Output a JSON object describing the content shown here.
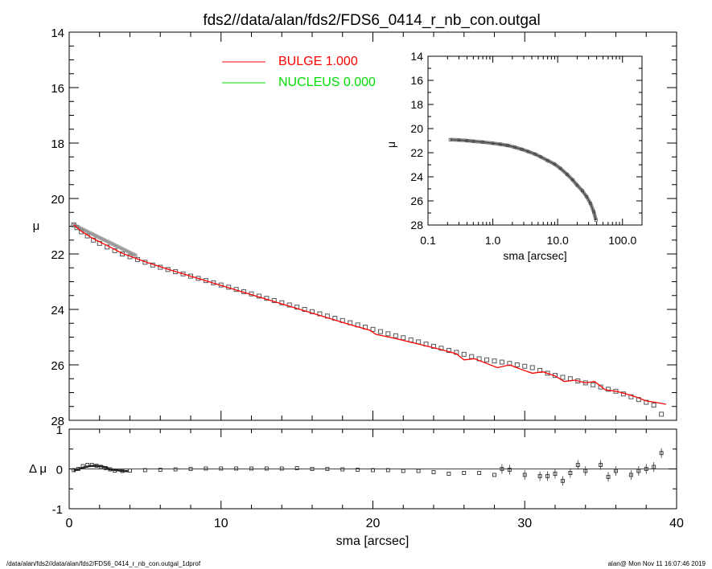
{
  "chart_data": [
    {
      "type": "line",
      "name": "main-profile",
      "title": "fds2//data/alan/fds2/FDS6_0414_r_nb_con.outgal",
      "xlabel": "sma [arcsec]",
      "ylabel": "μ",
      "xlim": [
        0,
        40
      ],
      "ylim": [
        28,
        14
      ],
      "yticks": [
        14,
        16,
        18,
        20,
        22,
        24,
        26,
        28
      ],
      "yticklabels": [
        "14",
        "16",
        "18",
        "20",
        "22",
        "24",
        "26",
        "28"
      ],
      "legend": [
        {
          "label": "BULGE  1.000",
          "color": "#ff0000"
        },
        {
          "label": "NUCLEUS  0.000",
          "color": "#00dd00"
        }
      ],
      "data_series": {
        "name": "data",
        "marker": "square",
        "x": [
          0.3,
          0.5,
          0.8,
          1.2,
          1.6,
          2.0,
          2.5,
          3.0,
          3.5,
          4.0,
          4.5,
          5.0,
          5.5,
          6.0,
          6.5,
          7.0,
          7.5,
          8.0,
          8.5,
          9.0,
          9.5,
          10.0,
          10.5,
          11.0,
          11.5,
          12.0,
          12.5,
          13.0,
          13.5,
          14.0,
          14.5,
          15.0,
          15.5,
          16.0,
          16.5,
          17.0,
          17.5,
          18.0,
          18.5,
          19.0,
          19.5,
          20.0,
          20.5,
          21.0,
          21.5,
          22.0,
          22.5,
          23.0,
          23.5,
          24.0,
          24.5,
          25.0,
          25.5,
          26.0,
          26.5,
          27.0,
          27.5,
          28.0,
          28.5,
          29.0,
          29.5,
          30.0,
          30.5,
          31.0,
          31.5,
          32.0,
          32.5,
          33.0,
          33.5,
          34.0,
          34.5,
          35.0,
          35.5,
          36.0,
          36.5,
          37.0,
          37.5,
          38.0,
          38.5,
          39.0
        ],
        "y": [
          20.95,
          21.05,
          21.2,
          21.35,
          21.5,
          21.62,
          21.75,
          21.88,
          22.0,
          22.1,
          22.2,
          22.3,
          22.4,
          22.48,
          22.56,
          22.64,
          22.72,
          22.8,
          22.88,
          22.96,
          23.04,
          23.12,
          23.2,
          23.28,
          23.36,
          23.44,
          23.52,
          23.6,
          23.68,
          23.76,
          23.84,
          23.92,
          24.0,
          24.08,
          24.16,
          24.24,
          24.32,
          24.4,
          24.48,
          24.56,
          24.64,
          24.72,
          24.8,
          24.88,
          24.95,
          25.02,
          25.1,
          25.17,
          25.25,
          25.33,
          25.4,
          25.48,
          25.55,
          25.62,
          25.7,
          25.78,
          25.82,
          25.86,
          25.9,
          25.95,
          26.0,
          26.05,
          26.1,
          26.2,
          26.3,
          26.38,
          26.45,
          26.5,
          26.58,
          26.65,
          26.72,
          26.8,
          26.88,
          26.95,
          27.05,
          27.15,
          27.25,
          27.35,
          27.45,
          27.78
        ]
      },
      "model_series": {
        "name": "BULGE",
        "color": "#ff0000",
        "x": [
          0.3,
          0.8,
          1.5,
          2.5,
          3.5,
          5.0,
          6.5,
          8.0,
          9.5,
          11.0,
          12.5,
          14.0,
          15.5,
          17.0,
          18.5,
          19.8,
          20.2,
          21.5,
          23.0,
          24.5,
          25.5,
          26.0,
          26.7,
          27.5,
          28.2,
          29.0,
          29.7,
          30.5,
          31.2,
          32.0,
          32.6,
          33.3,
          34.0,
          34.6,
          35.3,
          36.0,
          36.7,
          37.3,
          38.0,
          38.6,
          39.3
        ],
        "y": [
          20.95,
          21.18,
          21.42,
          21.7,
          21.98,
          22.28,
          22.55,
          22.8,
          23.05,
          23.3,
          23.55,
          23.8,
          24.05,
          24.3,
          24.55,
          24.75,
          24.9,
          25.05,
          25.25,
          25.45,
          25.6,
          25.82,
          25.78,
          25.95,
          26.1,
          26.0,
          26.15,
          26.3,
          26.25,
          26.4,
          26.6,
          26.55,
          26.65,
          26.6,
          26.9,
          26.95,
          27.05,
          27.15,
          27.3,
          27.35,
          27.42
        ]
      }
    },
    {
      "type": "line",
      "name": "residuals",
      "xlabel": "sma [arcsec]",
      "ylabel": "Δ μ",
      "xlim": [
        0,
        40
      ],
      "ylim": [
        -1,
        1
      ],
      "xticks": [
        0,
        10,
        20,
        30,
        40
      ],
      "xticklabels": [
        "0",
        "10",
        "20",
        "30",
        "40"
      ],
      "yticks": [
        -1,
        0,
        1
      ],
      "yticklabels": [
        "-1",
        "0",
        "1"
      ],
      "x": [
        0.3,
        0.6,
        0.9,
        1.2,
        1.5,
        1.8,
        2.1,
        2.4,
        2.7,
        3.0,
        3.5,
        4.0,
        5.0,
        6.0,
        7.0,
        8.0,
        9.0,
        10.0,
        11.0,
        12.0,
        13.0,
        14.0,
        15.0,
        16.0,
        17.0,
        18.0,
        19.0,
        20.0,
        21.0,
        22.0,
        23.0,
        24.0,
        25.0,
        26.0,
        27.0,
        28.0,
        28.5,
        29.0,
        30.0,
        31.0,
        31.5,
        32.0,
        32.5,
        33.0,
        33.5,
        34.0,
        35.0,
        35.5,
        36.0,
        37.0,
        37.5,
        38.0,
        38.5,
        39.0
      ],
      "y": [
        -0.03,
        0.0,
        0.07,
        0.1,
        0.1,
        0.08,
        0.05,
        0.02,
        -0.01,
        -0.04,
        -0.05,
        -0.04,
        -0.03,
        -0.02,
        -0.01,
        0.0,
        0.01,
        0.01,
        0.01,
        0.01,
        0.01,
        0.01,
        0.02,
        0.0,
        0.0,
        -0.01,
        -0.02,
        -0.03,
        -0.03,
        -0.05,
        -0.05,
        -0.08,
        -0.12,
        -0.1,
        -0.1,
        -0.15,
        0.0,
        -0.02,
        -0.15,
        -0.18,
        -0.18,
        -0.12,
        -0.3,
        -0.1,
        0.1,
        -0.05,
        0.1,
        -0.2,
        -0.05,
        -0.15,
        -0.05,
        0.0,
        0.05,
        0.4
      ]
    },
    {
      "type": "line",
      "name": "inset-log-profile",
      "xlabel": "sma [arcsec]",
      "ylabel": "μ",
      "xscale": "log",
      "xlim": [
        0.1,
        200
      ],
      "ylim": [
        28,
        14
      ],
      "xticks": [
        0.1,
        1.0,
        10.0,
        100.0
      ],
      "xticklabels": [
        "0.1",
        "1.0",
        "10.0",
        "100.0"
      ],
      "yticks": [
        14,
        16,
        18,
        20,
        22,
        24,
        26,
        28
      ],
      "yticklabels": [
        "14",
        "16",
        "18",
        "20",
        "22",
        "24",
        "26",
        "28"
      ],
      "x": [
        0.22,
        0.3,
        0.4,
        0.5,
        0.7,
        1.0,
        1.3,
        1.7,
        2.2,
        2.8,
        3.5,
        4.5,
        5.5,
        7.0,
        9.0,
        11.0,
        14.0,
        17.0,
        20.0,
        24.0,
        28.0,
        32.0,
        36.0,
        39.0
      ],
      "y": [
        20.92,
        20.95,
        21.0,
        21.05,
        21.12,
        21.22,
        21.3,
        21.4,
        21.55,
        21.72,
        21.9,
        22.12,
        22.35,
        22.65,
        22.95,
        23.3,
        23.8,
        24.25,
        24.7,
        25.15,
        25.65,
        26.2,
        26.9,
        27.6
      ]
    }
  ],
  "footer": {
    "left": "/data/alan/fds2//data/alan/fds2/FDS6_0414_r_nb_con.outgal_1dprof",
    "right": "alan@  Mon Nov 11 16:07:46 2019"
  }
}
